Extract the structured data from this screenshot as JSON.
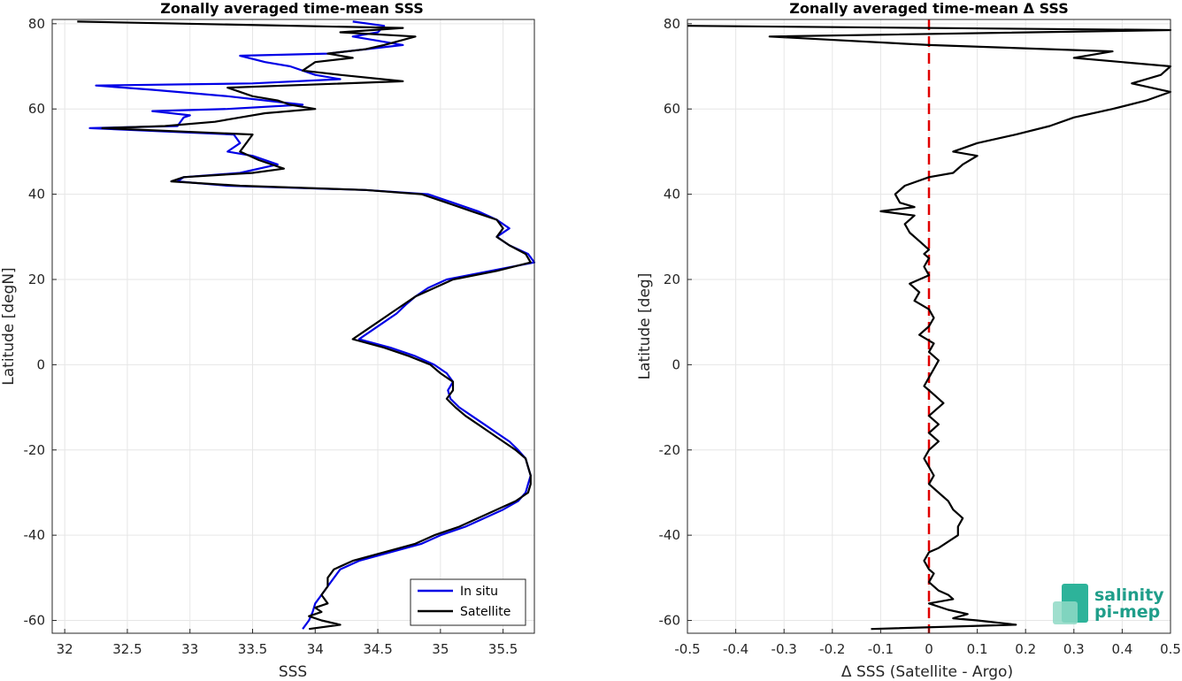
{
  "chart_data": [
    {
      "type": "line",
      "title": "Zonally averaged time-mean SSS",
      "xlabel": "SSS",
      "ylabel": "Latitude [degN]",
      "xlim": [
        31.9,
        35.75
      ],
      "ylim": [
        -63,
        81
      ],
      "x_ticks": [
        "32",
        "32.5",
        "33",
        "33.5",
        "34",
        "34.5",
        "35",
        "35.5"
      ],
      "y_ticks": [
        "80",
        "60",
        "40",
        "20",
        "0",
        "-20",
        "-40",
        "-60"
      ],
      "grid": true,
      "legend": "bottom-right",
      "series": [
        {
          "name": "In situ",
          "color": "#0000e6",
          "points": [
            [
              33.9,
              -62
            ],
            [
              33.95,
              -60
            ],
            [
              33.98,
              -58
            ],
            [
              34.0,
              -56
            ],
            [
              34.05,
              -54
            ],
            [
              34.1,
              -52
            ],
            [
              34.15,
              -50
            ],
            [
              34.2,
              -48
            ],
            [
              34.35,
              -46
            ],
            [
              34.6,
              -44
            ],
            [
              34.85,
              -42
            ],
            [
              35.0,
              -40
            ],
            [
              35.2,
              -38
            ],
            [
              35.35,
              -36
            ],
            [
              35.5,
              -34
            ],
            [
              35.62,
              -32
            ],
            [
              35.68,
              -30
            ],
            [
              35.7,
              -28
            ],
            [
              35.72,
              -26
            ],
            [
              35.7,
              -24
            ],
            [
              35.68,
              -22
            ],
            [
              35.62,
              -20
            ],
            [
              35.55,
              -18
            ],
            [
              35.45,
              -16
            ],
            [
              35.35,
              -14
            ],
            [
              35.25,
              -12
            ],
            [
              35.15,
              -10
            ],
            [
              35.08,
              -8
            ],
            [
              35.06,
              -6
            ],
            [
              35.1,
              -4
            ],
            [
              35.05,
              -2
            ],
            [
              34.95,
              0
            ],
            [
              34.8,
              2
            ],
            [
              34.6,
              4
            ],
            [
              34.35,
              6
            ],
            [
              34.45,
              8
            ],
            [
              34.55,
              10
            ],
            [
              34.65,
              12
            ],
            [
              34.72,
              14
            ],
            [
              34.8,
              16
            ],
            [
              34.9,
              18
            ],
            [
              35.05,
              20
            ],
            [
              35.4,
              22
            ],
            [
              35.75,
              24
            ],
            [
              35.7,
              26
            ],
            [
              35.55,
              28
            ],
            [
              35.45,
              30
            ],
            [
              35.55,
              32
            ],
            [
              35.45,
              34
            ],
            [
              35.3,
              36
            ],
            [
              35.1,
              38
            ],
            [
              34.9,
              40
            ],
            [
              34.4,
              41
            ],
            [
              33.3,
              42
            ],
            [
              32.9,
              43
            ],
            [
              32.95,
              44
            ],
            [
              33.4,
              45
            ],
            [
              33.7,
              47
            ],
            [
              33.5,
              49
            ],
            [
              33.3,
              50
            ],
            [
              33.4,
              52
            ],
            [
              33.35,
              54
            ],
            [
              32.2,
              55.5
            ],
            [
              32.9,
              56
            ],
            [
              32.95,
              58
            ],
            [
              33.0,
              58.5
            ],
            [
              32.7,
              59.5
            ],
            [
              33.3,
              60
            ],
            [
              33.9,
              61
            ],
            [
              33.3,
              63
            ],
            [
              32.7,
              64.5
            ],
            [
              32.25,
              65.5
            ],
            [
              33.5,
              66
            ],
            [
              34.2,
              67
            ],
            [
              34.0,
              68
            ],
            [
              33.8,
              70
            ],
            [
              33.6,
              71
            ],
            [
              33.4,
              72.5
            ],
            [
              34.1,
              73
            ],
            [
              34.7,
              75
            ],
            [
              34.5,
              76
            ],
            [
              34.3,
              77
            ],
            [
              34.5,
              78
            ],
            [
              34.55,
              79.5
            ],
            [
              34.3,
              80.5
            ]
          ]
        },
        {
          "name": "Satellite",
          "color": "#000000",
          "points": [
            [
              33.95,
              -62
            ],
            [
              34.2,
              -61
            ],
            [
              34.05,
              -60
            ],
            [
              33.95,
              -59
            ],
            [
              34.05,
              -58
            ],
            [
              34.0,
              -57
            ],
            [
              34.1,
              -56
            ],
            [
              34.05,
              -54
            ],
            [
              34.1,
              -52
            ],
            [
              34.1,
              -50
            ],
            [
              34.15,
              -48
            ],
            [
              34.3,
              -46
            ],
            [
              34.55,
              -44
            ],
            [
              34.8,
              -42
            ],
            [
              34.95,
              -40
            ],
            [
              35.15,
              -38
            ],
            [
              35.3,
              -36
            ],
            [
              35.45,
              -34
            ],
            [
              35.6,
              -32
            ],
            [
              35.7,
              -30
            ],
            [
              35.72,
              -28
            ],
            [
              35.72,
              -26
            ],
            [
              35.7,
              -24
            ],
            [
              35.68,
              -22
            ],
            [
              35.6,
              -20
            ],
            [
              35.5,
              -18
            ],
            [
              35.4,
              -16
            ],
            [
              35.3,
              -14
            ],
            [
              35.2,
              -12
            ],
            [
              35.12,
              -10
            ],
            [
              35.05,
              -8
            ],
            [
              35.1,
              -6
            ],
            [
              35.1,
              -4
            ],
            [
              35.0,
              -2
            ],
            [
              34.92,
              0
            ],
            [
              34.75,
              2
            ],
            [
              34.55,
              4
            ],
            [
              34.3,
              6
            ],
            [
              34.4,
              8
            ],
            [
              34.5,
              10
            ],
            [
              34.6,
              12
            ],
            [
              34.7,
              14
            ],
            [
              34.8,
              16
            ],
            [
              34.95,
              18
            ],
            [
              35.1,
              20
            ],
            [
              35.45,
              22
            ],
            [
              35.72,
              24
            ],
            [
              35.68,
              26
            ],
            [
              35.55,
              28
            ],
            [
              35.45,
              30
            ],
            [
              35.5,
              32
            ],
            [
              35.45,
              34
            ],
            [
              35.25,
              36
            ],
            [
              35.05,
              38
            ],
            [
              34.85,
              40
            ],
            [
              34.4,
              41
            ],
            [
              33.4,
              42
            ],
            [
              32.85,
              43
            ],
            [
              32.95,
              44
            ],
            [
              33.5,
              45
            ],
            [
              33.75,
              46
            ],
            [
              33.55,
              48
            ],
            [
              33.4,
              50
            ],
            [
              33.45,
              52
            ],
            [
              33.5,
              54
            ],
            [
              32.3,
              55.5
            ],
            [
              32.8,
              56
            ],
            [
              33.2,
              57
            ],
            [
              33.4,
              58
            ],
            [
              33.6,
              59
            ],
            [
              34.0,
              60
            ],
            [
              33.8,
              61
            ],
            [
              33.7,
              62
            ],
            [
              33.5,
              63
            ],
            [
              33.3,
              65
            ],
            [
              34.7,
              66.5
            ],
            [
              34.2,
              68
            ],
            [
              33.9,
              69
            ],
            [
              34.0,
              71
            ],
            [
              34.3,
              72
            ],
            [
              34.1,
              73
            ],
            [
              34.4,
              74
            ],
            [
              34.55,
              75
            ],
            [
              34.8,
              77
            ],
            [
              34.2,
              78
            ],
            [
              34.7,
              79
            ],
            [
              32.1,
              80.5
            ]
          ]
        }
      ]
    },
    {
      "type": "line",
      "title": "Zonally averaged time-mean Δ SSS",
      "xlabel": "Δ SSS (Satellite - Argo)",
      "ylabel": "Latitude [deg]",
      "xlim": [
        -0.5,
        0.5
      ],
      "ylim": [
        -63,
        81
      ],
      "x_ticks": [
        "-0.5",
        "-0.4",
        "-0.3",
        "-0.2",
        "-0.1",
        "0",
        "0.1",
        "0.2",
        "0.3",
        "0.4",
        "0.5"
      ],
      "y_ticks": [
        "80",
        "60",
        "40",
        "20",
        "0",
        "-20",
        "-40",
        "-60"
      ],
      "grid": true,
      "zero_line": {
        "x": 0,
        "color": "#e00000",
        "style": "dashed"
      },
      "series": [
        {
          "color": "#000000",
          "points": [
            [
              -0.12,
              -62
            ],
            [
              0.18,
              -61
            ],
            [
              0.1,
              -60
            ],
            [
              0.05,
              -59.5
            ],
            [
              0.08,
              -58.5
            ],
            [
              0.04,
              -57.5
            ],
            [
              0.0,
              -56
            ],
            [
              0.05,
              -55
            ],
            [
              0.04,
              -54
            ],
            [
              0.02,
              -53
            ],
            [
              0.0,
              -51
            ],
            [
              0.01,
              -49
            ],
            [
              0.0,
              -48
            ],
            [
              -0.01,
              -46
            ],
            [
              0.0,
              -44
            ],
            [
              0.02,
              -43
            ],
            [
              0.06,
              -40
            ],
            [
              0.06,
              -38
            ],
            [
              0.07,
              -36
            ],
            [
              0.05,
              -34
            ],
            [
              0.04,
              -32
            ],
            [
              0.02,
              -30
            ],
            [
              0.0,
              -28
            ],
            [
              0.01,
              -26
            ],
            [
              0.0,
              -24
            ],
            [
              -0.01,
              -22
            ],
            [
              0.0,
              -20
            ],
            [
              0.02,
              -18
            ],
            [
              0.0,
              -16
            ],
            [
              0.02,
              -14
            ],
            [
              0.0,
              -12
            ],
            [
              0.03,
              -9
            ],
            [
              0.01,
              -7
            ],
            [
              -0.01,
              -5
            ],
            [
              0.0,
              -3
            ],
            [
              0.01,
              -1
            ],
            [
              0.02,
              1
            ],
            [
              0.0,
              3
            ],
            [
              0.01,
              5
            ],
            [
              -0.02,
              7
            ],
            [
              0.0,
              9
            ],
            [
              0.01,
              11
            ],
            [
              0.0,
              13
            ],
            [
              -0.03,
              15
            ],
            [
              -0.02,
              17
            ],
            [
              -0.04,
              19
            ],
            [
              0.0,
              21
            ],
            [
              -0.01,
              23
            ],
            [
              0.0,
              25
            ],
            [
              -0.01,
              26
            ],
            [
              0.0,
              27
            ],
            [
              -0.02,
              29
            ],
            [
              -0.04,
              31
            ],
            [
              -0.05,
              33
            ],
            [
              -0.03,
              35
            ],
            [
              -0.1,
              36
            ],
            [
              -0.03,
              37
            ],
            [
              -0.06,
              38
            ],
            [
              -0.07,
              40
            ],
            [
              -0.05,
              42
            ],
            [
              0.0,
              44
            ],
            [
              0.05,
              45
            ],
            [
              0.07,
              47
            ],
            [
              0.1,
              49
            ],
            [
              0.05,
              50
            ],
            [
              0.1,
              52
            ],
            [
              0.18,
              54
            ],
            [
              0.25,
              56
            ],
            [
              0.3,
              58
            ],
            [
              0.38,
              60
            ],
            [
              0.45,
              62
            ],
            [
              0.5,
              64
            ],
            [
              0.42,
              66
            ],
            [
              0.48,
              68
            ],
            [
              0.5,
              70
            ],
            [
              0.3,
              72
            ],
            [
              0.38,
              73.5
            ],
            [
              0.0,
              75
            ],
            [
              -0.33,
              77
            ],
            [
              0.5,
              78.5
            ],
            [
              -0.5,
              79.5
            ]
          ]
        }
      ]
    }
  ],
  "legend_entries": [
    "In situ",
    "Satellite"
  ],
  "logo": {
    "line1": "salinity",
    "line2": "pi-mep",
    "color": "#1f9e8a"
  }
}
